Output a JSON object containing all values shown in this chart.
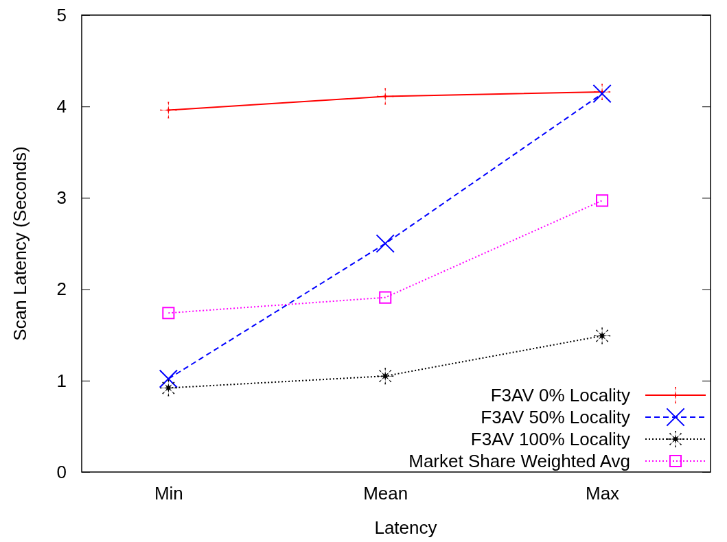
{
  "chart_data": {
    "type": "line",
    "xlabel": "Latency",
    "ylabel": "Scan Latency (Seconds)",
    "categories": [
      "Min",
      "Mean",
      "Max"
    ],
    "ylim": [
      0,
      5
    ],
    "yticks": [
      0,
      1,
      2,
      3,
      4,
      5
    ],
    "grid": false,
    "legend": "bottom right",
    "series": [
      {
        "name": "F3AV 0% Locality",
        "color": "#ff0000",
        "marker": "cross",
        "line_style": "solid",
        "values": [
          3.96,
          4.11,
          4.16
        ]
      },
      {
        "name": "F3AV 50% Locality",
        "color": "#0000ff",
        "marker": "x",
        "line_style": "dashed",
        "values": [
          1.02,
          2.5,
          4.14
        ]
      },
      {
        "name": "F3AV 100% Locality",
        "color": "#000000",
        "marker": "star",
        "line_style": "dotted",
        "values": [
          0.92,
          1.05,
          1.49
        ]
      },
      {
        "name": "Market Share Weighted Avg",
        "color": "#ff00ff",
        "marker": "square",
        "line_style": "dotted",
        "values": [
          1.74,
          1.91,
          2.97
        ]
      }
    ]
  }
}
